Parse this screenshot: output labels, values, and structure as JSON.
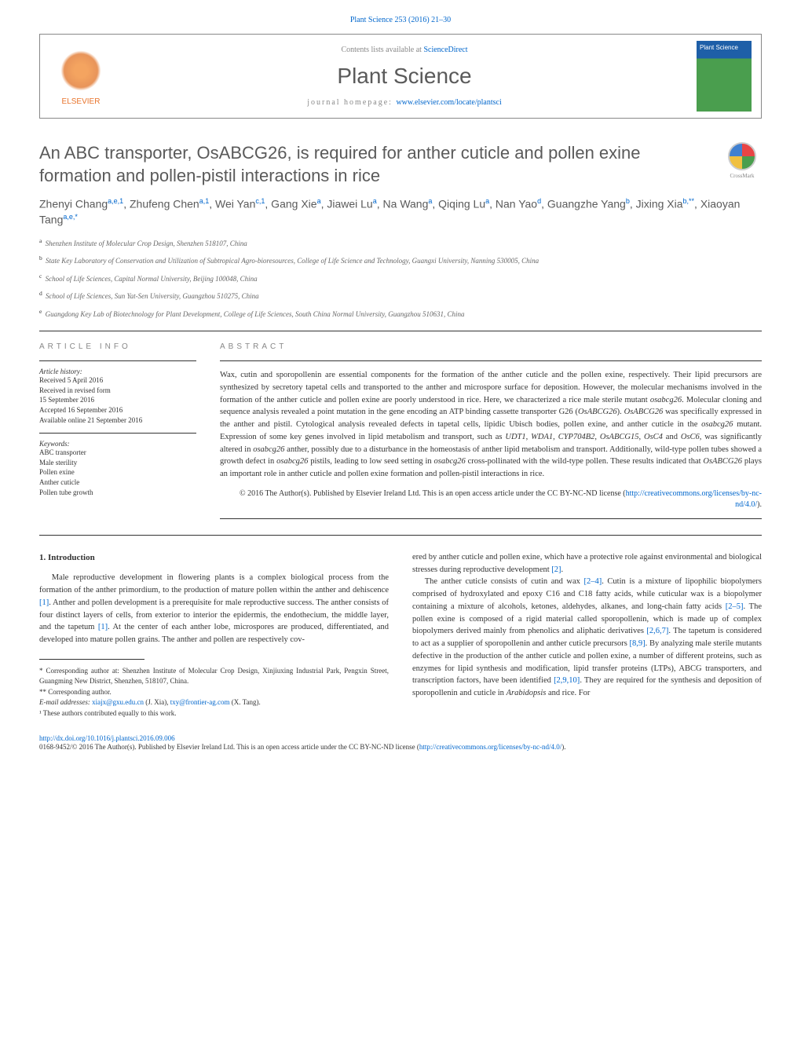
{
  "top_citation": "Plant Science 253 (2016) 21–30",
  "header": {
    "contents_prefix": "Contents lists available at ",
    "contents_link": "ScienceDirect",
    "journal_name": "Plant Science",
    "homepage_prefix": "journal homepage: ",
    "homepage_link": "www.elsevier.com/locate/plantsci",
    "elsevier_label": "ELSEVIER",
    "cover_label": "Plant Science"
  },
  "title": "An ABC transporter, OsABCG26, is required for anther cuticle and pollen exine formation and pollen-pistil interactions in rice",
  "crossmark": "CrossMark",
  "authors_html": "Zhenyi Chang<sup>a,e,1</sup>, Zhufeng Chen<sup>a,1</sup>, Wei Yan<sup>c,1</sup>, Gang Xie<sup>a</sup>, Jiawei Lu<sup>a</sup>, Na Wang<sup>a</sup>, Qiqing Lu<sup>a</sup>, Nan Yao<sup>d</sup>, Guangzhe Yang<sup>b</sup>, Jixing Xia<sup>b,**</sup>, Xiaoyan Tang<sup>a,e,*</sup>",
  "affiliations": [
    {
      "sup": "a",
      "text": "Shenzhen Institute of Molecular Crop Design, Shenzhen 518107, China"
    },
    {
      "sup": "b",
      "text": "State Key Laboratory of Conservation and Utilization of Subtropical Agro-bioresources, College of Life Science and Technology, Guangxi University, Nanning 530005, China"
    },
    {
      "sup": "c",
      "text": "School of Life Sciences, Capital Normal University, Beijing 100048, China"
    },
    {
      "sup": "d",
      "text": "School of Life Sciences, Sun Yat-Sen University, Guangzhou 510275, China"
    },
    {
      "sup": "e",
      "text": "Guangdong Key Lab of Biotechnology for Plant Development, College of Life Sciences, South China Normal University, Guangzhou 510631, China"
    }
  ],
  "article_info": {
    "heading": "ARTICLE INFO",
    "history_label": "Article history:",
    "history": "Received 5 April 2016\nReceived in revised form\n15 September 2016\nAccepted 16 September 2016\nAvailable online 21 September 2016",
    "keywords_label": "Keywords:",
    "keywords": [
      "ABC transporter",
      "Male sterility",
      "Pollen exine",
      "Anther cuticle",
      "Pollen tube growth"
    ]
  },
  "abstract": {
    "heading": "ABSTRACT",
    "text": "Wax, cutin and sporopollenin are essential components for the formation of the anther cuticle and the pollen exine, respectively. Their lipid precursors are synthesized by secretory tapetal cells and transported to the anther and microspore surface for deposition. However, the molecular mechanisms involved in the formation of the anther cuticle and pollen exine are poorly understood in rice. Here, we characterized a rice male sterile mutant osabcg26. Molecular cloning and sequence analysis revealed a point mutation in the gene encoding an ATP binding cassette transporter G26 (OsABCG26). OsABCG26 was specifically expressed in the anther and pistil. Cytological analysis revealed defects in tapetal cells, lipidic Ubisch bodies, pollen exine, and anther cuticle in the osabcg26 mutant. Expression of some key genes involved in lipid metabolism and transport, such as UDT1, WDA1, CYP704B2, OsABCG15, OsC4 and OsC6, was significantly altered in osabcg26 anther, possibly due to a disturbance in the homeostasis of anther lipid metabolism and transport. Additionally, wild-type pollen tubes showed a growth defect in osabcg26 pistils, leading to low seed setting in osabcg26 cross-pollinated with the wild-type pollen. These results indicated that OsABCG26 plays an important role in anther cuticle and pollen exine formation and pollen-pistil interactions in rice.",
    "copyright": "© 2016 The Author(s). Published by Elsevier Ireland Ltd. This is an open access article under the CC BY-NC-ND license (",
    "copyright_link": "http://creativecommons.org/licenses/by-nc-nd/4.0/",
    "copyright_close": ")."
  },
  "body": {
    "section_heading": "1. Introduction",
    "left_p1": "Male reproductive development in flowering plants is a complex biological process from the formation of the anther primordium, to the production of mature pollen within the anther and dehiscence [1]. Anther and pollen development is a prerequisite for male reproductive success. The anther consists of four distinct layers of cells, from exterior to interior the epidermis, the endothecium, the middle layer, and the tapetum [1]. At the center of each anther lobe, microspores are produced, differentiated, and developed into mature pollen grains. The anther and pollen are respectively cov-",
    "right_p1": "ered by anther cuticle and pollen exine, which have a protective role against environmental and biological stresses during reproductive development [2].",
    "right_p2": "The anther cuticle consists of cutin and wax [2–4]. Cutin is a mixture of lipophilic biopolymers comprised of hydroxylated and epoxy C16 and C18 fatty acids, while cuticular wax is a biopolymer containing a mixture of alcohols, ketones, aldehydes, alkanes, and long-chain fatty acids [2–5]. The pollen exine is composed of a rigid material called sporopollenin, which is made up of complex biopolymers derived mainly from phenolics and aliphatic derivatives [2,6,7]. The tapetum is considered to act as a supplier of sporopollenin and anther cuticle precursors [8,9]. By analyzing male sterile mutants defective in the production of the anther cuticle and pollen exine, a number of different proteins, such as enzymes for lipid synthesis and modification, lipid transfer proteins (LTPs), ABCG transporters, and transcription factors, have been identified [2,9,10]. They are required for the synthesis and deposition of sporopollenin and cuticle in Arabidopsis and rice. For",
    "refs_in_text": {
      "r1a": "[1]",
      "r1b": "[1]",
      "r2": "[2]",
      "r24": "[2–4]",
      "r25": "[2–5]",
      "r267": "[2,6,7]",
      "r89": "[8,9]",
      "r2910": "[2,9,10]"
    }
  },
  "footnotes": {
    "corr1": "* Corresponding author at: Shenzhen Institute of Molecular Crop Design, Xinjiuxing Industrial Park, Pengxin Street, Guangming New District, Shenzhen, 518107, China.",
    "corr2": "** Corresponding author.",
    "emails_label": "E-mail addresses: ",
    "email1": "xiajx@gxu.edu.cn",
    "email1_name": " (J. Xia), ",
    "email2": "txy@frontier-ag.com",
    "email2_name": " (X. Tang).",
    "note1": "¹ These authors contributed equally to this work."
  },
  "footer": {
    "doi": "http://dx.doi.org/10.1016/j.plantsci.2016.09.006",
    "license": "0168-9452/© 2016 The Author(s). Published by Elsevier Ireland Ltd. This is an open access article under the CC BY-NC-ND license (",
    "license_link": "http://creativecommons.org/licenses/by-nc-nd/4.0/",
    "license_close": ")."
  },
  "colors": {
    "link": "#0066cc",
    "journal_gray": "#5a5a5a",
    "elsevier_orange": "#e8742c",
    "border": "#333333"
  }
}
